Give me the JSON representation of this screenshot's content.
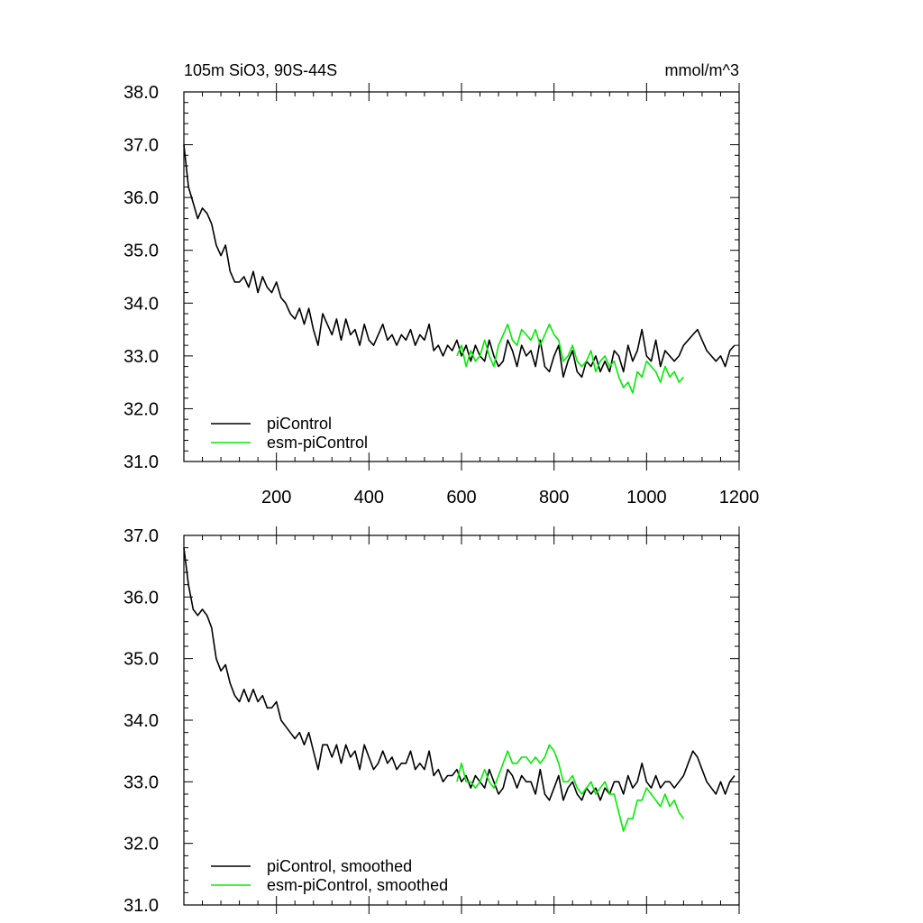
{
  "colors": {
    "piControl": "#000000",
    "esm": "#00ee00",
    "axis": "#000000"
  },
  "chart_data": [
    {
      "type": "line",
      "title": "105m SiO3, 90S-44S",
      "units": "mmol/m^3",
      "xlim": [
        0,
        1200
      ],
      "ylim": [
        31,
        38
      ],
      "x_ticks": [
        "200",
        "400",
        "600",
        "800",
        "1000",
        "1200"
      ],
      "y_ticks": [
        "31.0",
        "32.0",
        "33.0",
        "34.0",
        "35.0",
        "36.0",
        "37.0",
        "38.0"
      ],
      "legend": [
        "piControl",
        "esm-piControl"
      ],
      "legend_position": "bottom-left",
      "series": [
        {
          "name": "piControl",
          "x": [
            0,
            10,
            20,
            30,
            40,
            50,
            60,
            70,
            80,
            90,
            100,
            110,
            120,
            130,
            140,
            150,
            160,
            170,
            180,
            190,
            200,
            210,
            220,
            230,
            240,
            250,
            260,
            270,
            280,
            290,
            300,
            310,
            320,
            330,
            340,
            350,
            360,
            370,
            380,
            390,
            400,
            410,
            420,
            430,
            440,
            450,
            460,
            470,
            480,
            490,
            500,
            510,
            520,
            530,
            540,
            550,
            560,
            570,
            580,
            590,
            600,
            610,
            620,
            630,
            640,
            650,
            660,
            670,
            680,
            690,
            700,
            710,
            720,
            730,
            740,
            750,
            760,
            770,
            780,
            790,
            800,
            810,
            820,
            830,
            840,
            850,
            860,
            870,
            880,
            890,
            900,
            910,
            920,
            930,
            940,
            950,
            960,
            970,
            980,
            990,
            1000,
            1010,
            1020,
            1030,
            1040,
            1050,
            1060,
            1070,
            1080,
            1090,
            1100,
            1110,
            1120,
            1130,
            1140,
            1150,
            1160,
            1170,
            1180,
            1190
          ],
          "y": [
            37.0,
            36.2,
            35.9,
            35.6,
            35.8,
            35.7,
            35.5,
            35.1,
            34.9,
            35.1,
            34.6,
            34.4,
            34.4,
            34.5,
            34.3,
            34.6,
            34.2,
            34.5,
            34.3,
            34.2,
            34.4,
            34.1,
            34.0,
            33.8,
            33.7,
            33.9,
            33.6,
            33.9,
            33.5,
            33.2,
            33.8,
            33.6,
            33.4,
            33.7,
            33.3,
            33.7,
            33.4,
            33.5,
            33.2,
            33.6,
            33.3,
            33.2,
            33.4,
            33.6,
            33.3,
            33.4,
            33.2,
            33.4,
            33.3,
            33.5,
            33.2,
            33.4,
            33.3,
            33.6,
            33.1,
            33.2,
            33.0,
            33.2,
            33.1,
            33.3,
            33.0,
            33.2,
            32.9,
            33.2,
            33.0,
            32.9,
            33.3,
            33.0,
            32.8,
            32.9,
            33.3,
            33.1,
            32.8,
            33.2,
            33.0,
            33.1,
            32.8,
            33.3,
            32.8,
            32.7,
            33.0,
            33.2,
            32.6,
            32.9,
            33.1,
            32.7,
            32.6,
            32.9,
            32.8,
            33.0,
            32.7,
            32.9,
            32.7,
            33.1,
            33.0,
            32.7,
            33.2,
            32.9,
            33.1,
            33.5,
            33.0,
            32.9,
            33.3,
            32.8,
            33.1,
            33.0,
            32.9,
            33.0,
            33.2,
            33.3,
            33.4,
            33.5,
            33.3,
            33.1,
            33.0,
            32.9,
            33.0,
            32.8,
            33.1,
            33.2
          ]
        },
        {
          "name": "esm-piControl",
          "x": [
            590,
            600,
            610,
            620,
            630,
            640,
            650,
            660,
            670,
            680,
            690,
            700,
            710,
            720,
            730,
            740,
            750,
            760,
            770,
            780,
            790,
            800,
            810,
            820,
            830,
            840,
            850,
            860,
            870,
            880,
            890,
            900,
            910,
            920,
            930,
            940,
            950,
            960,
            970,
            980,
            990,
            1000,
            1010,
            1020,
            1030,
            1040,
            1050,
            1060,
            1070,
            1080
          ],
          "y": [
            33.0,
            33.2,
            32.8,
            33.1,
            32.9,
            33.0,
            33.3,
            33.0,
            32.8,
            33.2,
            33.4,
            33.6,
            33.3,
            33.2,
            33.5,
            33.4,
            33.3,
            33.5,
            33.2,
            33.4,
            33.6,
            33.4,
            33.3,
            32.9,
            33.0,
            33.2,
            32.9,
            32.8,
            32.9,
            33.1,
            32.7,
            32.9,
            33.0,
            32.8,
            32.9,
            32.6,
            32.4,
            32.5,
            32.3,
            32.7,
            32.6,
            32.9,
            32.8,
            32.7,
            32.5,
            32.8,
            32.6,
            32.7,
            32.5,
            32.6
          ]
        }
      ]
    },
    {
      "type": "line",
      "xlim": [
        0,
        1200
      ],
      "ylim": [
        31,
        37
      ],
      "y_ticks": [
        "31.0",
        "32.0",
        "33.0",
        "34.0",
        "35.0",
        "36.0",
        "37.0"
      ],
      "legend": [
        "piControl, smoothed",
        "esm-piControl, smoothed"
      ],
      "legend_position": "bottom-left",
      "series": [
        {
          "name": "piControl, smoothed",
          "x": [
            0,
            10,
            20,
            30,
            40,
            50,
            60,
            70,
            80,
            90,
            100,
            110,
            120,
            130,
            140,
            150,
            160,
            170,
            180,
            190,
            200,
            210,
            220,
            230,
            240,
            250,
            260,
            270,
            280,
            290,
            300,
            310,
            320,
            330,
            340,
            350,
            360,
            370,
            380,
            390,
            400,
            410,
            420,
            430,
            440,
            450,
            460,
            470,
            480,
            490,
            500,
            510,
            520,
            530,
            540,
            550,
            560,
            570,
            580,
            590,
            600,
            610,
            620,
            630,
            640,
            650,
            660,
            670,
            680,
            690,
            700,
            710,
            720,
            730,
            740,
            750,
            760,
            770,
            780,
            790,
            800,
            810,
            820,
            830,
            840,
            850,
            860,
            870,
            880,
            890,
            900,
            910,
            920,
            930,
            940,
            950,
            960,
            970,
            980,
            990,
            1000,
            1010,
            1020,
            1030,
            1040,
            1050,
            1060,
            1070,
            1080,
            1090,
            1100,
            1110,
            1120,
            1130,
            1140,
            1150,
            1160,
            1170,
            1180,
            1190
          ],
          "y": [
            36.8,
            36.2,
            35.8,
            35.7,
            35.8,
            35.7,
            35.5,
            35.0,
            34.8,
            34.9,
            34.6,
            34.4,
            34.3,
            34.5,
            34.3,
            34.5,
            34.3,
            34.4,
            34.2,
            34.2,
            34.3,
            34.0,
            33.9,
            33.8,
            33.7,
            33.8,
            33.6,
            33.8,
            33.5,
            33.2,
            33.6,
            33.6,
            33.4,
            33.6,
            33.3,
            33.6,
            33.4,
            33.5,
            33.2,
            33.6,
            33.4,
            33.2,
            33.3,
            33.5,
            33.3,
            33.4,
            33.2,
            33.3,
            33.3,
            33.5,
            33.2,
            33.3,
            33.2,
            33.5,
            33.1,
            33.2,
            33.0,
            33.1,
            33.1,
            33.2,
            33.0,
            33.1,
            32.9,
            33.1,
            33.0,
            32.9,
            33.2,
            33.0,
            32.8,
            32.9,
            33.2,
            33.1,
            32.9,
            33.1,
            33.0,
            33.0,
            32.8,
            33.2,
            32.8,
            32.7,
            32.9,
            33.1,
            32.7,
            32.9,
            33.0,
            32.8,
            32.7,
            32.9,
            32.8,
            32.9,
            32.7,
            32.9,
            32.8,
            33.0,
            33.0,
            32.8,
            33.1,
            32.9,
            33.0,
            33.3,
            33.0,
            32.9,
            33.1,
            32.9,
            33.0,
            33.0,
            32.9,
            33.0,
            33.1,
            33.3,
            33.5,
            33.4,
            33.2,
            33.0,
            32.9,
            32.8,
            33.0,
            32.8,
            33.0,
            33.1
          ]
        },
        {
          "name": "esm-piControl, smoothed",
          "x": [
            590,
            600,
            610,
            620,
            630,
            640,
            650,
            660,
            670,
            680,
            690,
            700,
            710,
            720,
            730,
            740,
            750,
            760,
            770,
            780,
            790,
            800,
            810,
            820,
            830,
            840,
            850,
            860,
            870,
            880,
            890,
            900,
            910,
            920,
            930,
            940,
            950,
            960,
            970,
            980,
            990,
            1000,
            1010,
            1020,
            1030,
            1040,
            1050,
            1060,
            1070,
            1080
          ],
          "y": [
            33.0,
            33.3,
            33.0,
            33.0,
            32.9,
            33.0,
            33.2,
            33.0,
            32.9,
            33.1,
            33.3,
            33.5,
            33.3,
            33.3,
            33.4,
            33.4,
            33.3,
            33.4,
            33.3,
            33.4,
            33.6,
            33.5,
            33.3,
            33.0,
            33.0,
            33.1,
            32.9,
            32.8,
            32.9,
            33.0,
            32.8,
            32.9,
            33.0,
            32.8,
            32.8,
            32.5,
            32.2,
            32.4,
            32.4,
            32.7,
            32.7,
            32.9,
            32.8,
            32.7,
            32.6,
            32.8,
            32.6,
            32.7,
            32.5,
            32.4
          ]
        }
      ]
    }
  ]
}
